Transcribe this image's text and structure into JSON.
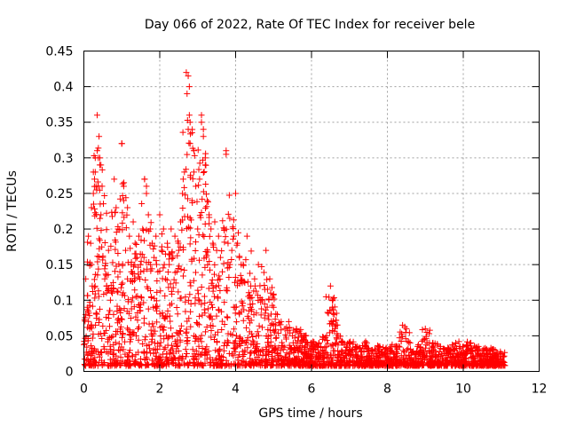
{
  "chart_data": {
    "type": "scatter",
    "title": "Day 066 of 2022, Rate Of TEC Index for receiver bele",
    "xlabel": "GPS time / hours",
    "ylabel": "ROTI / TECUs",
    "xlim": [
      0,
      12
    ],
    "ylim": [
      0,
      0.45
    ],
    "xticks": [
      "0",
      "2",
      "4",
      "6",
      "8",
      "10",
      "12"
    ],
    "yticks": [
      "0",
      "0.05",
      "0.1",
      "0.15",
      "0.2",
      "0.25",
      "0.3",
      "0.35",
      "0.4",
      "0.45"
    ],
    "grid": true,
    "marker": "+",
    "color": "#ff0000",
    "x_range_of_data": [
      0,
      11.1
    ],
    "series": [
      {
        "x": [
          0.05,
          0.1,
          0.12,
          0.15,
          0.18,
          0.2,
          0.22,
          0.25,
          0.28,
          0.3,
          0.32,
          0.35,
          0.38,
          0.4,
          0.42,
          0.45,
          0.48,
          0.5,
          0.55,
          0.6,
          0.65,
          0.7,
          0.75,
          0.8,
          0.85,
          0.9,
          0.95,
          1.0,
          1.05,
          1.1,
          1.15,
          1.2,
          1.25,
          1.3,
          1.35,
          1.4,
          1.45,
          1.5,
          1.55,
          1.6,
          1.65,
          1.7,
          1.75,
          1.8,
          1.85,
          1.9,
          1.95,
          2.0,
          2.05,
          2.1,
          2.15,
          2.2,
          2.25,
          2.3,
          2.35,
          2.4,
          2.45,
          2.5,
          2.55,
          2.6,
          2.65,
          2.7,
          2.72,
          2.75,
          2.78,
          2.8,
          2.85,
          2.9,
          2.95,
          3.0,
          3.05,
          3.1,
          3.15,
          3.2,
          3.25,
          3.3,
          3.35,
          3.4,
          3.45,
          3.5,
          3.55,
          3.6,
          3.65,
          3.7,
          3.75,
          3.8,
          3.85,
          3.9,
          3.95,
          4.0,
          4.05,
          4.1,
          4.2,
          4.3,
          4.4,
          4.5,
          4.6,
          4.7,
          4.8,
          4.9,
          5.0,
          5.1,
          5.2,
          5.3,
          5.4,
          5.5,
          5.6,
          5.7,
          5.8,
          5.9,
          6.0,
          6.1,
          6.2,
          6.3,
          6.4,
          6.5,
          6.55,
          6.6,
          6.7,
          6.8,
          6.9,
          7.0,
          7.2,
          7.4,
          7.6,
          7.8,
          8.0,
          8.2,
          8.4,
          8.5,
          8.6,
          8.8,
          9.0,
          9.2,
          9.4,
          9.6,
          9.8,
          10.0,
          10.2,
          10.4,
          10.6,
          10.8,
          11.0,
          0.3,
          0.35,
          0.42,
          0.45,
          1.0,
          1.05,
          2.75,
          2.78,
          3.1,
          3.15,
          3.75,
          2.8,
          1.6,
          1.65,
          2.9,
          3.2,
          0.2,
          0.25,
          0.6,
          0.65
        ],
        "y": [
          0.13,
          0.09,
          0.19,
          0.06,
          0.18,
          0.15,
          0.12,
          0.28,
          0.27,
          0.3,
          0.26,
          0.36,
          0.3,
          0.33,
          0.29,
          0.22,
          0.26,
          0.16,
          0.13,
          0.12,
          0.08,
          0.1,
          0.11,
          0.27,
          0.23,
          0.2,
          0.14,
          0.32,
          0.24,
          0.17,
          0.23,
          0.19,
          0.15,
          0.21,
          0.18,
          0.16,
          0.19,
          0.14,
          0.2,
          0.27,
          0.25,
          0.22,
          0.2,
          0.18,
          0.16,
          0.19,
          0.14,
          0.22,
          0.17,
          0.2,
          0.13,
          0.18,
          0.15,
          0.2,
          0.16,
          0.19,
          0.14,
          0.17,
          0.21,
          0.25,
          0.28,
          0.42,
          0.39,
          0.34,
          0.36,
          0.32,
          0.24,
          0.28,
          0.26,
          0.2,
          0.27,
          0.35,
          0.33,
          0.29,
          0.24,
          0.22,
          0.2,
          0.18,
          0.21,
          0.17,
          0.19,
          0.16,
          0.14,
          0.2,
          0.31,
          0.18,
          0.15,
          0.17,
          0.19,
          0.25,
          0.18,
          0.16,
          0.15,
          0.19,
          0.12,
          0.13,
          0.15,
          0.1,
          0.17,
          0.13,
          0.09,
          0.08,
          0.07,
          0.06,
          0.07,
          0.05,
          0.06,
          0.04,
          0.05,
          0.04,
          0.04,
          0.03,
          0.04,
          0.03,
          0.05,
          0.12,
          0.1,
          0.08,
          0.05,
          0.04,
          0.03,
          0.04,
          0.035,
          0.04,
          0.03,
          0.035,
          0.03,
          0.035,
          0.065,
          0.06,
          0.04,
          0.035,
          0.06,
          0.04,
          0.035,
          0.03,
          0.04,
          0.035,
          0.04,
          0.035,
          0.03,
          0.03,
          0.025,
          0.28,
          0.31,
          0.3,
          0.29,
          0.32,
          0.26,
          0.415,
          0.4,
          0.36,
          0.34,
          0.305,
          0.35,
          0.27,
          0.26,
          0.31,
          0.3,
          0.23,
          0.25,
          0.12,
          0.17
        ]
      }
    ]
  }
}
